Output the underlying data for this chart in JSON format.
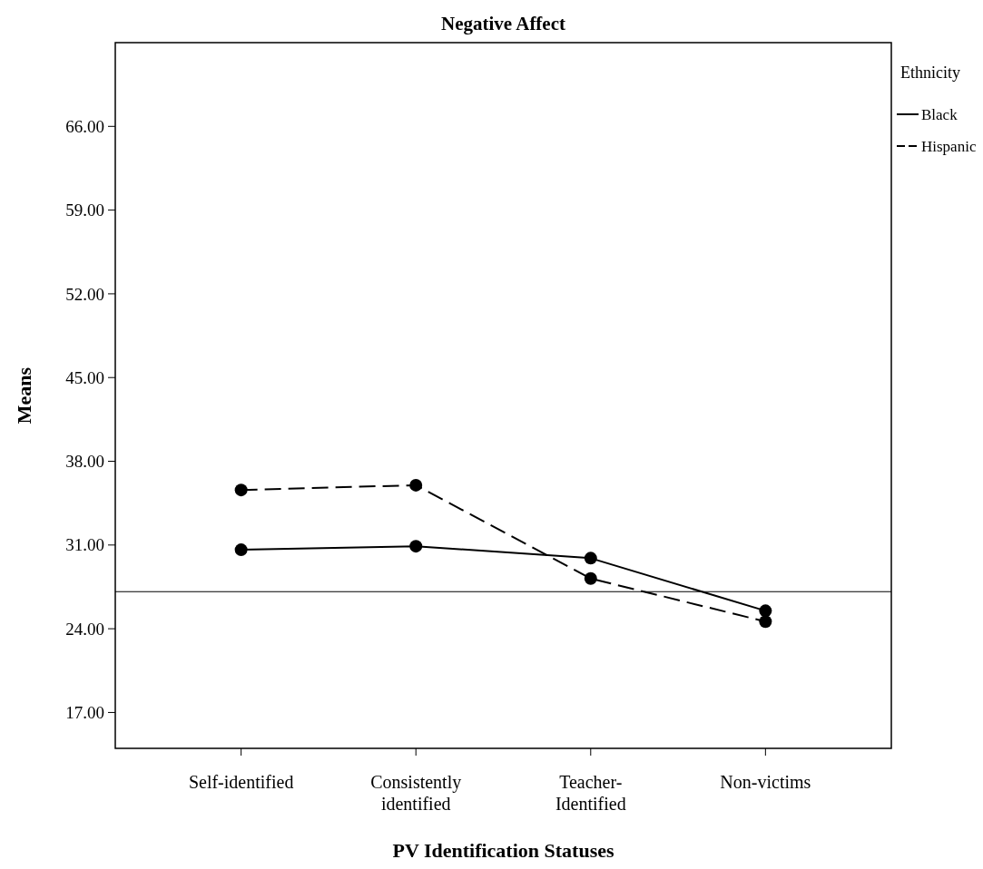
{
  "chart_data": {
    "type": "line",
    "title": "Negative Affect",
    "xlabel": "PV Identification Statuses",
    "ylabel": "Means",
    "legend_title": "Ethnicity",
    "categories": [
      "Self-identified",
      "Consistently identified",
      "Teacher-Identified",
      "Non-victims"
    ],
    "series": [
      {
        "name": "Black",
        "color": "#000000",
        "line_style": "solid",
        "values": [
          30.6,
          30.9,
          29.9,
          25.5
        ]
      },
      {
        "name": "Hispanic",
        "color": "#000000",
        "line_style": "dashed",
        "values": [
          35.6,
          36.0,
          28.2,
          24.6
        ]
      }
    ],
    "ylim": [
      14,
      73
    ],
    "yticks": [
      {
        "value": 17,
        "label": "17.00"
      },
      {
        "value": 24,
        "label": "24.00"
      },
      {
        "value": 31,
        "label": "31.00"
      },
      {
        "value": 38,
        "label": "38.00"
      },
      {
        "value": 45,
        "label": "45.00"
      },
      {
        "value": 52,
        "label": "52.00"
      },
      {
        "value": 59,
        "label": "59.00"
      },
      {
        "value": 66,
        "label": "66.00"
      }
    ],
    "ref_lines": [
      {
        "axis": "y",
        "value": 27.1,
        "color": "#000000"
      }
    ],
    "marker": "circle",
    "legend": "top right",
    "grid": false
  }
}
